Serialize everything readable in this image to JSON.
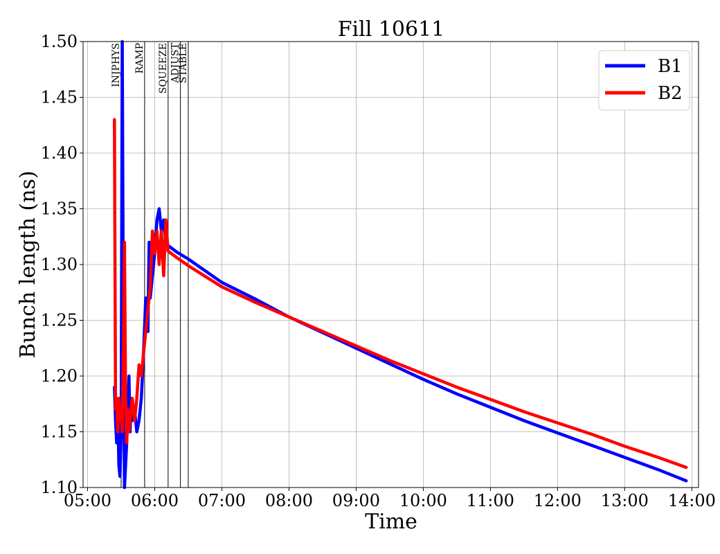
{
  "chart_data": {
    "type": "line",
    "title": "Fill 10611",
    "xlabel": "Time",
    "ylabel": "Bunch length (ns)",
    "xlim": [
      "05:00",
      "14:00"
    ],
    "ylim": [
      1.1,
      1.5
    ],
    "x_ticks": [
      "05:00",
      "06:00",
      "07:00",
      "08:00",
      "09:00",
      "10:00",
      "11:00",
      "12:00",
      "13:00",
      "14:00"
    ],
    "y_ticks": [
      "1.10",
      "1.15",
      "1.20",
      "1.25",
      "1.30",
      "1.35",
      "1.40",
      "1.45",
      "1.50"
    ],
    "grid": true,
    "legend_position": "top-right",
    "phases": [
      {
        "label": "INJPHYS",
        "time": "05:30"
      },
      {
        "label": "RAMP",
        "time": "05:51"
      },
      {
        "label": "SQUEEZE",
        "time": "06:12"
      },
      {
        "label": "ADJUST",
        "time": "06:23"
      },
      {
        "label": "STABLE",
        "time": "06:30"
      }
    ],
    "series": [
      {
        "name": "B1",
        "color": "#0000ff",
        "points": [
          [
            "05:24",
            1.19
          ],
          [
            "05:25",
            1.16
          ],
          [
            "05:26",
            1.14
          ],
          [
            "05:27",
            1.17
          ],
          [
            "05:28",
            1.12
          ],
          [
            "05:29",
            1.11
          ],
          [
            "05:30",
            1.15
          ],
          [
            "05:31",
            1.5
          ],
          [
            "05:32",
            1.24
          ],
          [
            "05:33",
            1.1
          ],
          [
            "05:34",
            1.12
          ],
          [
            "05:35",
            1.14
          ],
          [
            "05:36",
            1.17
          ],
          [
            "05:37",
            1.2
          ],
          [
            "05:38",
            1.15
          ],
          [
            "05:39",
            1.18
          ],
          [
            "05:40",
            1.16
          ],
          [
            "05:42",
            1.17
          ],
          [
            "05:44",
            1.15
          ],
          [
            "05:46",
            1.16
          ],
          [
            "05:48",
            1.18
          ],
          [
            "05:50",
            1.22
          ],
          [
            "05:52",
            1.27
          ],
          [
            "05:54",
            1.24
          ],
          [
            "05:55",
            1.32
          ],
          [
            "05:56",
            1.27
          ],
          [
            "05:58",
            1.29
          ],
          [
            "06:00",
            1.31
          ],
          [
            "06:02",
            1.34
          ],
          [
            "06:04",
            1.35
          ],
          [
            "06:06",
            1.33
          ],
          [
            "06:08",
            1.34
          ],
          [
            "06:10",
            1.32
          ],
          [
            "06:12",
            1.317
          ],
          [
            "06:20",
            1.311
          ],
          [
            "06:30",
            1.305
          ],
          [
            "07:00",
            1.284
          ],
          [
            "07:30",
            1.269
          ],
          [
            "08:00",
            1.253
          ],
          [
            "08:30",
            1.239
          ],
          [
            "09:00",
            1.225
          ],
          [
            "09:30",
            1.211
          ],
          [
            "10:00",
            1.197
          ],
          [
            "10:30",
            1.184
          ],
          [
            "11:00",
            1.172
          ],
          [
            "11:30",
            1.16
          ],
          [
            "12:00",
            1.149
          ],
          [
            "12:30",
            1.138
          ],
          [
            "13:00",
            1.127
          ],
          [
            "13:30",
            1.116
          ],
          [
            "13:55",
            1.106
          ]
        ]
      },
      {
        "name": "B2",
        "color": "#ff0000",
        "points": [
          [
            "05:24",
            1.43
          ],
          [
            "05:25",
            1.17
          ],
          [
            "05:26",
            1.18
          ],
          [
            "05:27",
            1.15
          ],
          [
            "05:28",
            1.18
          ],
          [
            "05:29",
            1.16
          ],
          [
            "05:30",
            1.17
          ],
          [
            "05:31",
            1.15
          ],
          [
            "05:32",
            1.22
          ],
          [
            "05:33",
            1.32
          ],
          [
            "05:34",
            1.18
          ],
          [
            "05:35",
            1.14
          ],
          [
            "05:36",
            1.17
          ],
          [
            "05:37",
            1.15
          ],
          [
            "05:38",
            1.16
          ],
          [
            "05:40",
            1.18
          ],
          [
            "05:42",
            1.16
          ],
          [
            "05:44",
            1.18
          ],
          [
            "05:46",
            1.21
          ],
          [
            "05:48",
            1.2
          ],
          [
            "05:50",
            1.22
          ],
          [
            "05:52",
            1.24
          ],
          [
            "05:54",
            1.26
          ],
          [
            "05:56",
            1.28
          ],
          [
            "05:58",
            1.33
          ],
          [
            "06:00",
            1.31
          ],
          [
            "06:02",
            1.33
          ],
          [
            "06:04",
            1.3
          ],
          [
            "06:06",
            1.33
          ],
          [
            "06:08",
            1.29
          ],
          [
            "06:10",
            1.34
          ],
          [
            "06:12",
            1.312
          ],
          [
            "06:20",
            1.306
          ],
          [
            "06:30",
            1.299
          ],
          [
            "07:00",
            1.28
          ],
          [
            "07:30",
            1.266
          ],
          [
            "08:00",
            1.253
          ],
          [
            "08:30",
            1.24
          ],
          [
            "09:00",
            1.227
          ],
          [
            "09:30",
            1.214
          ],
          [
            "10:00",
            1.202
          ],
          [
            "10:30",
            1.19
          ],
          [
            "11:00",
            1.179
          ],
          [
            "11:30",
            1.168
          ],
          [
            "12:00",
            1.158
          ],
          [
            "12:30",
            1.148
          ],
          [
            "13:00",
            1.137
          ],
          [
            "13:30",
            1.127
          ],
          [
            "13:55",
            1.118
          ]
        ]
      }
    ]
  }
}
